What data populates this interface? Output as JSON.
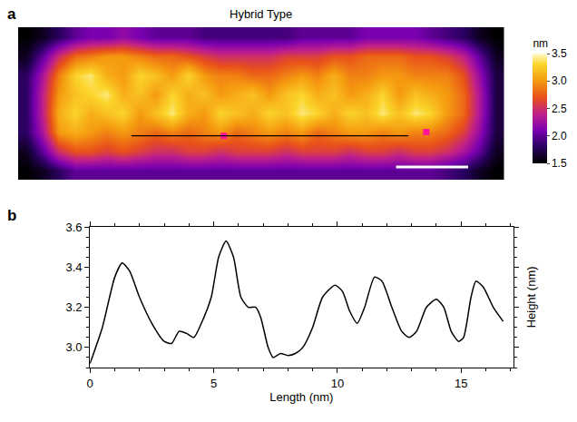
{
  "chart_data": [
    {
      "type": "heatmap",
      "label": "a",
      "title": "Hybrid Type",
      "tick_labels": false,
      "z": [
        [
          1.5,
          1.6,
          1.8,
          2.0,
          2.1,
          2.1,
          2.2,
          2.1,
          2.0,
          2.0,
          2.0,
          1.9,
          1.9,
          1.9,
          1.9,
          1.9,
          1.9,
          2.0,
          2.0,
          2.0,
          2.0,
          2.1,
          2.1,
          2.1,
          2.1,
          2.0,
          1.9,
          1.8,
          1.6,
          1.5
        ],
        [
          1.6,
          2.0,
          2.5,
          2.8,
          2.9,
          3.0,
          3.0,
          2.9,
          2.8,
          2.8,
          2.7,
          2.6,
          2.5,
          2.5,
          2.5,
          2.5,
          2.6,
          2.6,
          2.6,
          2.7,
          2.7,
          2.8,
          2.8,
          2.8,
          2.7,
          2.7,
          2.6,
          2.4,
          2.0,
          1.6
        ],
        [
          1.8,
          2.3,
          2.9,
          3.3,
          3.4,
          3.1,
          3.0,
          3.3,
          3.2,
          3.0,
          3.3,
          3.0,
          2.9,
          2.9,
          2.8,
          2.8,
          2.9,
          3.0,
          2.9,
          3.1,
          2.9,
          2.9,
          3.0,
          3.0,
          2.9,
          2.9,
          2.9,
          2.7,
          2.2,
          1.7
        ],
        [
          1.8,
          2.4,
          3.0,
          3.2,
          3.3,
          3.4,
          3.1,
          3.2,
          3.0,
          3.3,
          3.1,
          3.2,
          3.0,
          3.1,
          3.2,
          3.0,
          3.2,
          3.3,
          3.1,
          3.2,
          3.0,
          3.1,
          3.3,
          3.0,
          3.2,
          3.1,
          3.0,
          2.8,
          2.3,
          1.7
        ],
        [
          1.8,
          2.4,
          3.1,
          3.3,
          3.1,
          3.2,
          3.3,
          3.0,
          3.2,
          3.4,
          3.1,
          3.0,
          3.3,
          3.2,
          3.1,
          3.3,
          3.2,
          3.4,
          3.3,
          3.1,
          3.3,
          3.2,
          3.4,
          3.2,
          3.4,
          3.3,
          3.0,
          2.8,
          2.3,
          1.7
        ],
        [
          1.8,
          2.3,
          3.0,
          3.1,
          3.0,
          2.9,
          3.0,
          2.9,
          2.8,
          2.9,
          2.8,
          2.9,
          3.0,
          2.8,
          2.9,
          3.0,
          2.9,
          3.0,
          2.8,
          2.9,
          3.0,
          3.0,
          2.9,
          3.0,
          2.9,
          2.9,
          2.8,
          2.6,
          2.2,
          1.7
        ],
        [
          1.6,
          2.0,
          2.5,
          2.7,
          2.7,
          2.6,
          2.7,
          2.6,
          2.5,
          2.5,
          2.6,
          2.6,
          2.5,
          2.6,
          2.6,
          2.6,
          2.5,
          2.6,
          2.6,
          2.6,
          2.5,
          2.6,
          2.6,
          2.5,
          2.6,
          2.6,
          2.5,
          2.3,
          2.0,
          1.6
        ],
        [
          1.5,
          1.6,
          1.8,
          2.0,
          2.0,
          2.0,
          2.0,
          2.0,
          2.0,
          2.0,
          2.0,
          2.0,
          2.0,
          2.0,
          2.0,
          2.0,
          2.0,
          2.0,
          2.0,
          2.0,
          2.0,
          2.0,
          2.0,
          2.0,
          2.0,
          2.0,
          1.9,
          1.8,
          1.6,
          1.5
        ]
      ],
      "colorbar": {
        "title": "nm",
        "range": [
          1.5,
          3.5
        ],
        "ticks": [
          1.5,
          {
            "value": 2,
            "label": "2.0"
          },
          2.5,
          {
            "value": 3,
            "label": "3.0"
          },
          3.5
        ]
      },
      "profile_line": {
        "x": [
          6.5,
          23.6
        ],
        "y": [
          5.2,
          5.2
        ]
      },
      "points": {
        "x": [
          12.2,
          24.7
        ],
        "y": [
          5.2,
          5.0
        ],
        "color": "#ff1493"
      }
    },
    {
      "type": "line",
      "label": "b",
      "xlabel": "Length (nm)",
      "ylabel": "Height (nm)",
      "grid": false,
      "color": "#000000",
      "x": [
        0,
        0.5,
        1.0,
        1.3,
        1.6,
        2.0,
        2.5,
        3.0,
        3.3,
        3.6,
        3.9,
        4.2,
        4.5,
        4.9,
        5.2,
        5.5,
        5.8,
        6.1,
        6.4,
        6.7,
        6.9,
        7.2,
        7.4,
        7.7,
        8.0,
        8.3,
        8.6,
        9.0,
        9.4,
        9.9,
        10.2,
        10.5,
        10.8,
        11.1,
        11.5,
        11.8,
        12.2,
        12.6,
        12.9,
        13.2,
        13.6,
        14.0,
        14.3,
        14.6,
        14.9,
        15.1,
        15.4,
        15.6,
        15.9,
        16.3,
        16.7
      ],
      "values": [
        2.92,
        3.1,
        3.35,
        3.42,
        3.38,
        3.25,
        3.12,
        3.03,
        3.02,
        3.08,
        3.07,
        3.05,
        3.12,
        3.25,
        3.45,
        3.53,
        3.45,
        3.25,
        3.2,
        3.2,
        3.15,
        3.0,
        2.95,
        2.97,
        2.96,
        2.97,
        3.0,
        3.1,
        3.25,
        3.31,
        3.28,
        3.18,
        3.12,
        3.2,
        3.35,
        3.33,
        3.2,
        3.08,
        3.05,
        3.08,
        3.2,
        3.24,
        3.2,
        3.08,
        3.03,
        3.05,
        3.25,
        3.33,
        3.3,
        3.2,
        3.13
      ],
      "xlim": [
        0,
        17.1
      ],
      "xticks": [
        0,
        5,
        10,
        15
      ],
      "ylim": [
        2.9,
        3.6
      ],
      "yticks": [
        {
          "value": 3,
          "label": "3.0"
        },
        3.2,
        3.4,
        3.6
      ]
    }
  ]
}
